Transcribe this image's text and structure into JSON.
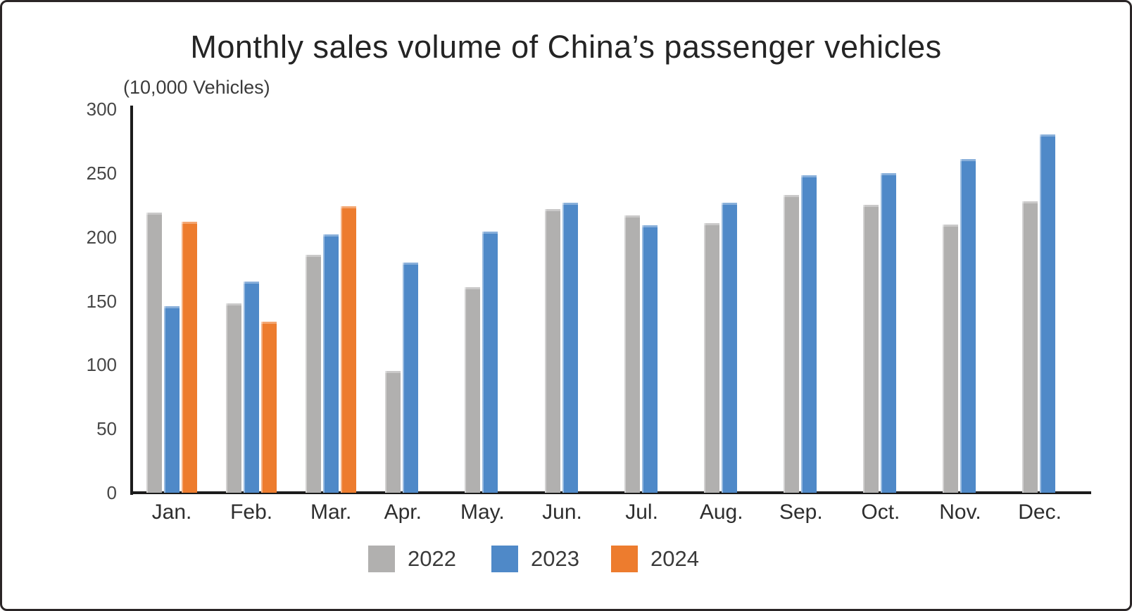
{
  "chart_data": {
    "type": "bar",
    "title": "Monthly sales volume of China’s passenger vehicles",
    "unit_label": "(10,000 Vehicles)",
    "categories": [
      "Jan.",
      "Feb.",
      "Mar.",
      "Apr.",
      "May.",
      "Jun.",
      "Jul.",
      "Aug.",
      "Sep.",
      "Oct.",
      "Nov.",
      "Dec."
    ],
    "series": [
      {
        "name": "2022",
        "color": "#b1b0af",
        "values": [
          219,
          148,
          186,
          95,
          161,
          222,
          217,
          211,
          233,
          225,
          210,
          228
        ]
      },
      {
        "name": "2023",
        "color": "#4f89c8",
        "values": [
          146,
          165,
          202,
          180,
          204,
          227,
          209,
          227,
          248,
          250,
          261,
          280
        ]
      },
      {
        "name": "2024",
        "color": "#ed7c2e",
        "values": [
          212,
          134,
          224,
          null,
          null,
          null,
          null,
          null,
          null,
          null,
          null,
          null
        ]
      }
    ],
    "ylabel": "",
    "xlabel": "",
    "ylim": [
      0,
      300
    ],
    "yticks": [
      0,
      50,
      100,
      150,
      200,
      250,
      300
    ],
    "grid": false,
    "legend_position": "bottom",
    "axis_color": "#1c1c1c"
  }
}
